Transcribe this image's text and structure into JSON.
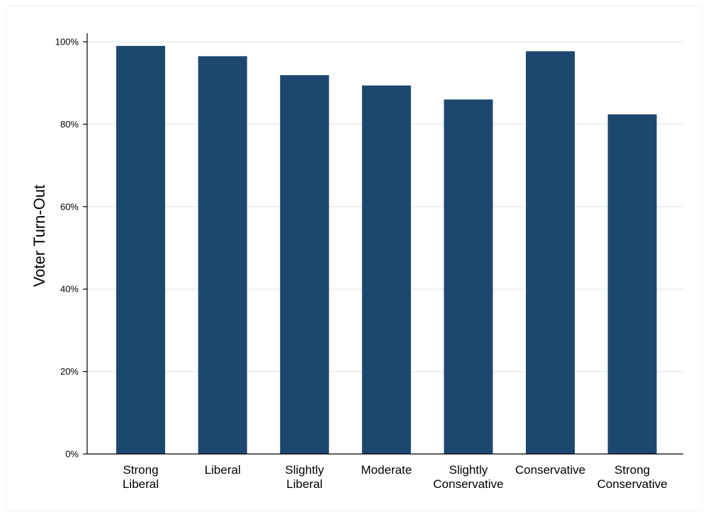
{
  "chart_data": {
    "type": "bar",
    "categories": [
      [
        "Strong",
        "Liberal"
      ],
      [
        "Liberal"
      ],
      [
        "Slightly",
        "Liberal"
      ],
      [
        "Moderate"
      ],
      [
        "Slightly",
        "Conservative"
      ],
      [
        "Conservative"
      ],
      [
        "Strong",
        "Conservative"
      ]
    ],
    "values": [
      99.0,
      96.5,
      91.9,
      89.4,
      86.0,
      97.7,
      82.4
    ],
    "ylabel": "Voter Turn-Out",
    "xlabel": "",
    "ylim": [
      0,
      100
    ],
    "yticks": [
      {
        "value": 0,
        "label": "0%"
      },
      {
        "value": 20,
        "label": "20%"
      },
      {
        "value": 40,
        "label": "40%"
      },
      {
        "value": 60,
        "label": "60%"
      },
      {
        "value": 80,
        "label": "80%"
      },
      {
        "value": 100,
        "label": "100%"
      }
    ],
    "grid": true,
    "bar_color": "#1c476e"
  }
}
